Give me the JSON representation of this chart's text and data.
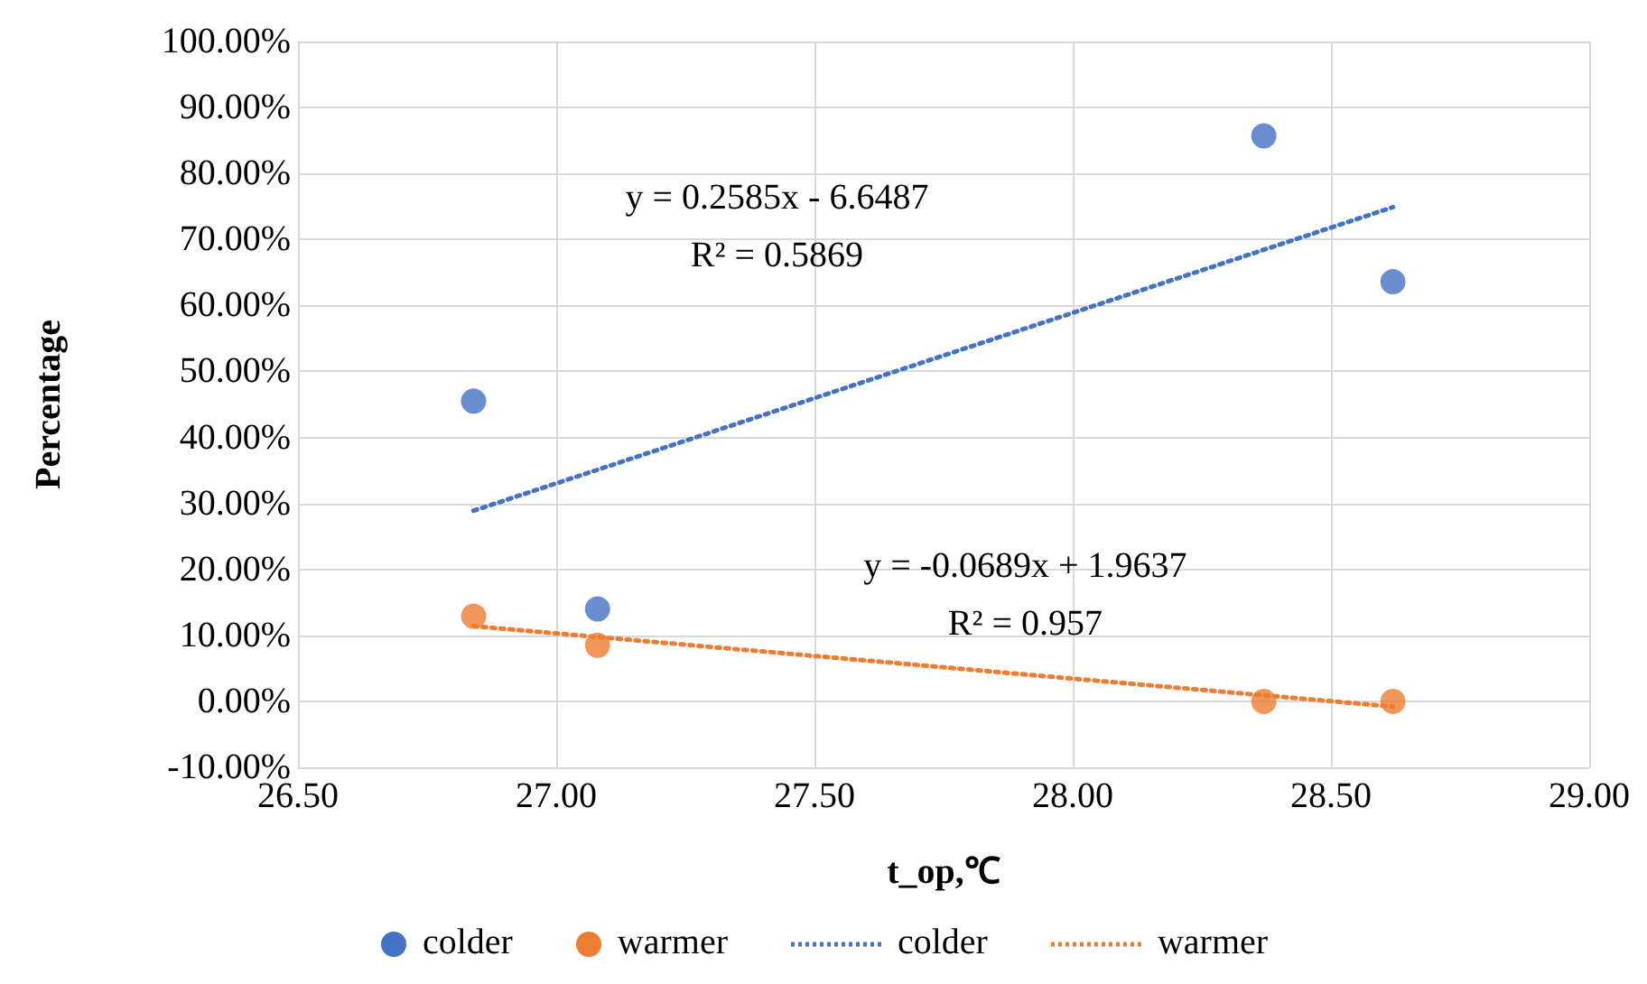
{
  "chart_data": {
    "type": "scatter",
    "xlabel": "t_op,℃",
    "ylabel": "Percentage",
    "xlim": [
      26.5,
      29
    ],
    "xticks": [
      {
        "value": 26.5,
        "label": "26.50"
      },
      {
        "value": 27,
        "label": "27.00"
      },
      {
        "value": 27.5,
        "label": "27.50"
      },
      {
        "value": 28,
        "label": "28.00"
      },
      {
        "value": 28.5,
        "label": "28.50"
      },
      {
        "value": 29,
        "label": "29.00"
      }
    ],
    "ylim": [
      -10,
      100
    ],
    "yticks": [
      {
        "value": -10,
        "label": "-10.00%"
      },
      {
        "value": 0,
        "label": "0.00%"
      },
      {
        "value": 10,
        "label": "10.00%"
      },
      {
        "value": 20,
        "label": "20.00%"
      },
      {
        "value": 30,
        "label": "30.00%"
      },
      {
        "value": 40,
        "label": "40.00%"
      },
      {
        "value": 50,
        "label": "50.00%"
      },
      {
        "value": 60,
        "label": "60.00%"
      },
      {
        "value": 70,
        "label": "70.00%"
      },
      {
        "value": 80,
        "label": "80.00%"
      },
      {
        "value": 90,
        "label": "90.00%"
      },
      {
        "value": 100,
        "label": "100.00%"
      }
    ],
    "grid": true,
    "legend": "bottom",
    "series": [
      {
        "name": "colder",
        "type": "scatter",
        "marker": "circle",
        "color": "#4472c4",
        "x": [
          26.84,
          27.08,
          28.37,
          28.62
        ],
        "values": [
          45.5,
          14.0,
          85.7,
          63.6
        ]
      },
      {
        "name": "warmer",
        "type": "scatter",
        "marker": "circle",
        "color": "#ed7d31",
        "x": [
          26.84,
          27.08,
          28.37,
          28.62
        ],
        "values": [
          12.9,
          8.5,
          0,
          0
        ]
      },
      {
        "name": "colder",
        "type": "line",
        "marker": "none",
        "line_style": "dotted",
        "color": "#4472c4",
        "x": [
          26.84,
          28.62
        ],
        "values": [
          28.9,
          74.9
        ]
      },
      {
        "name": "warmer",
        "type": "line",
        "marker": "none",
        "line_style": "dotted",
        "color": "#ed7d31",
        "x": [
          26.84,
          28.62
        ],
        "values": [
          11.4,
          -0.8
        ]
      }
    ],
    "annotations": [
      "y = 0.2585x - 6.6487\nR² = 0.5869",
      "y = -0.0689x + 1.9637\nR² = 0.957"
    ]
  }
}
